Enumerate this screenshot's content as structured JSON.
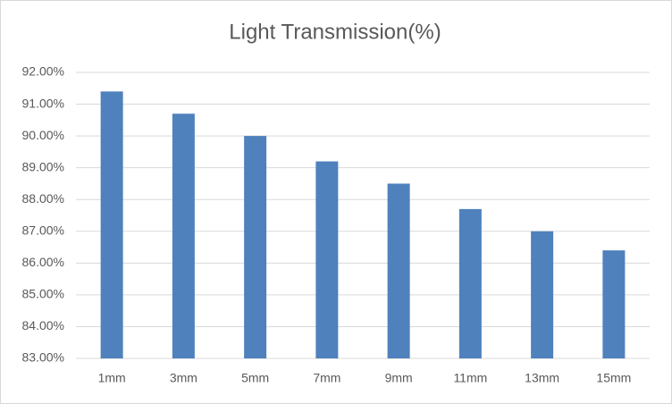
{
  "chart_data": {
    "type": "bar",
    "title": "Light Transmission(%)",
    "categories": [
      "1mm",
      "3mm",
      "5mm",
      "7mm",
      "9mm",
      "11mm",
      "13mm",
      "15mm"
    ],
    "values": [
      91.4,
      90.7,
      90.0,
      89.2,
      88.5,
      87.7,
      87.0,
      86.4
    ],
    "color": "#4f81bd",
    "ylim": [
      83,
      92
    ],
    "yticks": [
      {
        "value": 83,
        "label": "83.00%"
      },
      {
        "value": 84,
        "label": "84.00%"
      },
      {
        "value": 85,
        "label": "85.00%"
      },
      {
        "value": 86,
        "label": "86.00%"
      },
      {
        "value": 87,
        "label": "87.00%"
      },
      {
        "value": 88,
        "label": "88.00%"
      },
      {
        "value": 89,
        "label": "89.00%"
      },
      {
        "value": 90,
        "label": "90.00%"
      },
      {
        "value": 91,
        "label": "91.00%"
      },
      {
        "value": 92,
        "label": "92.00%"
      }
    ],
    "grid": true
  }
}
